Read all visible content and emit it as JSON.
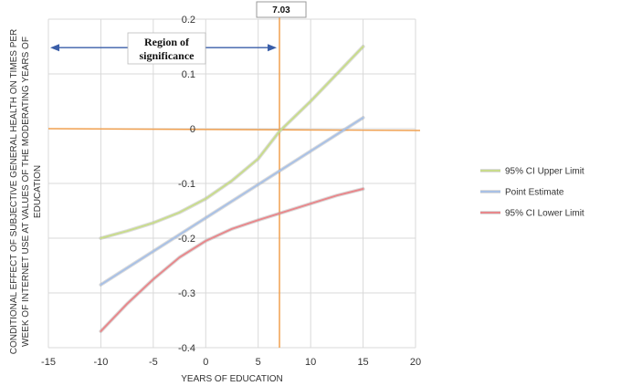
{
  "chart_data": {
    "type": "line",
    "title": "",
    "xlabel": "YEARS OF EDUCATION",
    "ylabel_lines": [
      "CONDITIONAL EFFECT OF SUBJECTIVE GENERAL HEALTH ON TIMES PER",
      "WEEK OF INTERNET USE AT VALUES OF THE MODERATING YEARS OF",
      "EDUCATION"
    ],
    "xlim": [
      -15,
      20
    ],
    "ylim": [
      -0.4,
      0.2
    ],
    "xticks": [
      "-15",
      "-10",
      "-5",
      "0",
      "5",
      "10",
      "15",
      "20"
    ],
    "yticks": [
      "0.2",
      "0.1",
      "0",
      "-0.1",
      "-0.2",
      "-0.3",
      "-0.4"
    ],
    "grid": true,
    "legend_position": "right",
    "series": [
      {
        "name": "95% CI Upper Limit",
        "color": "#c9dc8c",
        "points": [
          [
            -10,
            -0.2
          ],
          [
            -7.5,
            -0.187
          ],
          [
            -5,
            -0.172
          ],
          [
            -2.5,
            -0.153
          ],
          [
            0,
            -0.128
          ],
          [
            2.5,
            -0.095
          ],
          [
            5,
            -0.055
          ],
          [
            7.03,
            -0.005
          ],
          [
            10,
            0.05
          ],
          [
            12.5,
            0.1
          ],
          [
            15,
            0.15
          ]
        ]
      },
      {
        "name": "Point Estimate",
        "color": "#a9c1e6",
        "points": [
          [
            -10,
            -0.285
          ],
          [
            15,
            0.02
          ]
        ]
      },
      {
        "name": "95% CI Lower Limit",
        "color": "#e8888c",
        "points": [
          [
            -10,
            -0.37
          ],
          [
            -7.5,
            -0.32
          ],
          [
            -5,
            -0.275
          ],
          [
            -2.5,
            -0.235
          ],
          [
            0,
            -0.205
          ],
          [
            2.5,
            -0.183
          ],
          [
            5,
            -0.167
          ],
          [
            7.5,
            -0.152
          ],
          [
            10,
            -0.137
          ],
          [
            12.5,
            -0.122
          ],
          [
            15,
            -0.11
          ]
        ]
      }
    ],
    "reference_lines": {
      "zero_line_color": "#f0a050",
      "vertical_x": 7.03,
      "vertical_color": "#f0a050",
      "vertical_label": "7.03"
    },
    "annotation": {
      "text_lines": [
        "Region of",
        "significance"
      ],
      "arrow_from_x": -15,
      "arrow_to_x": 7.03,
      "arrow_y": 0.148,
      "arrow_color": "#3a5ea8"
    }
  }
}
